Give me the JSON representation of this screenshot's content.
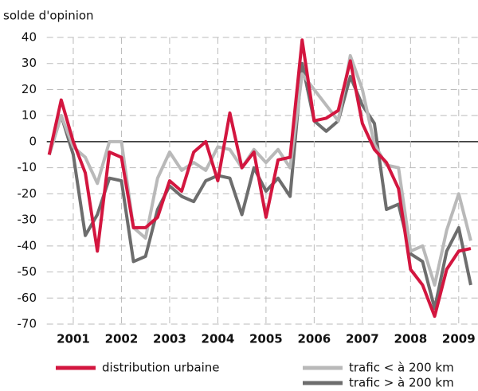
{
  "chart_data": {
    "type": "line",
    "y_label": "solde d'opinion",
    "x": [
      2001.0,
      2001.25,
      2001.5,
      2001.75,
      2002.0,
      2002.25,
      2002.5,
      2002.75,
      2003.0,
      2003.25,
      2003.5,
      2003.75,
      2004.0,
      2004.25,
      2004.5,
      2004.75,
      2005.0,
      2005.25,
      2005.5,
      2005.75,
      2006.0,
      2006.25,
      2006.5,
      2006.75,
      2007.0,
      2007.25,
      2007.5,
      2007.75,
      2008.0,
      2008.25,
      2008.5,
      2008.75,
      2009.0,
      2009.25,
      2009.5,
      2009.75
    ],
    "series": [
      {
        "name": "distribution urbaine",
        "color": "#d3163f",
        "values": [
          -5,
          16,
          0,
          -12,
          -42,
          -4,
          -6,
          -33,
          -33,
          -29,
          -15,
          -19,
          -4,
          0,
          -15,
          11,
          -10,
          -4,
          -29,
          -7,
          -6,
          39,
          8,
          9,
          12,
          31,
          7,
          -3,
          -8,
          -18,
          -49,
          -55,
          -67,
          -49,
          -42,
          -41
        ]
      },
      {
        "name": "trafic < à 200 km",
        "color": "#b9b9b9",
        "values": [
          -5,
          10,
          -2,
          -6,
          -16,
          0,
          0,
          -33,
          -37,
          -14,
          -4,
          -11,
          -8,
          -11,
          -2,
          -3,
          -10,
          -3,
          -8,
          -3,
          -10,
          26,
          20,
          14,
          8,
          33,
          20,
          -1,
          -9,
          -10,
          -42,
          -40,
          -55,
          -34,
          -20,
          -38
        ]
      },
      {
        "name": "trafic > à 200 km",
        "color": "#6d6d6d",
        "values": [
          -5,
          10,
          -5,
          -36,
          -28,
          -14,
          -15,
          -46,
          -44,
          -26,
          -17,
          -21,
          -23,
          -15,
          -13,
          -14,
          -28,
          -10,
          -19,
          -14,
          -21,
          30,
          8,
          4,
          8,
          25,
          14,
          7,
          -26,
          -24,
          -43,
          -46,
          -64,
          -42,
          -33,
          -55
        ]
      }
    ],
    "xlim": [
      2000.95,
      2009.9
    ],
    "xticks": [
      {
        "value": 2001.5,
        "label": "2001"
      },
      {
        "value": 2002.5,
        "label": "2002"
      },
      {
        "value": 2003.5,
        "label": "2003"
      },
      {
        "value": 2004.5,
        "label": "2004"
      },
      {
        "value": 2005.5,
        "label": "2005"
      },
      {
        "value": 2006.5,
        "label": "2006"
      },
      {
        "value": 2007.5,
        "label": "2007"
      },
      {
        "value": 2008.5,
        "label": "2008"
      },
      {
        "value": 2009.5,
        "label": "2009"
      }
    ],
    "ylim": [
      -70,
      40
    ],
    "yticks": [
      40,
      30,
      20,
      10,
      0,
      -10,
      -20,
      -30,
      -40,
      -50,
      -60,
      -70
    ],
    "grid": true
  }
}
